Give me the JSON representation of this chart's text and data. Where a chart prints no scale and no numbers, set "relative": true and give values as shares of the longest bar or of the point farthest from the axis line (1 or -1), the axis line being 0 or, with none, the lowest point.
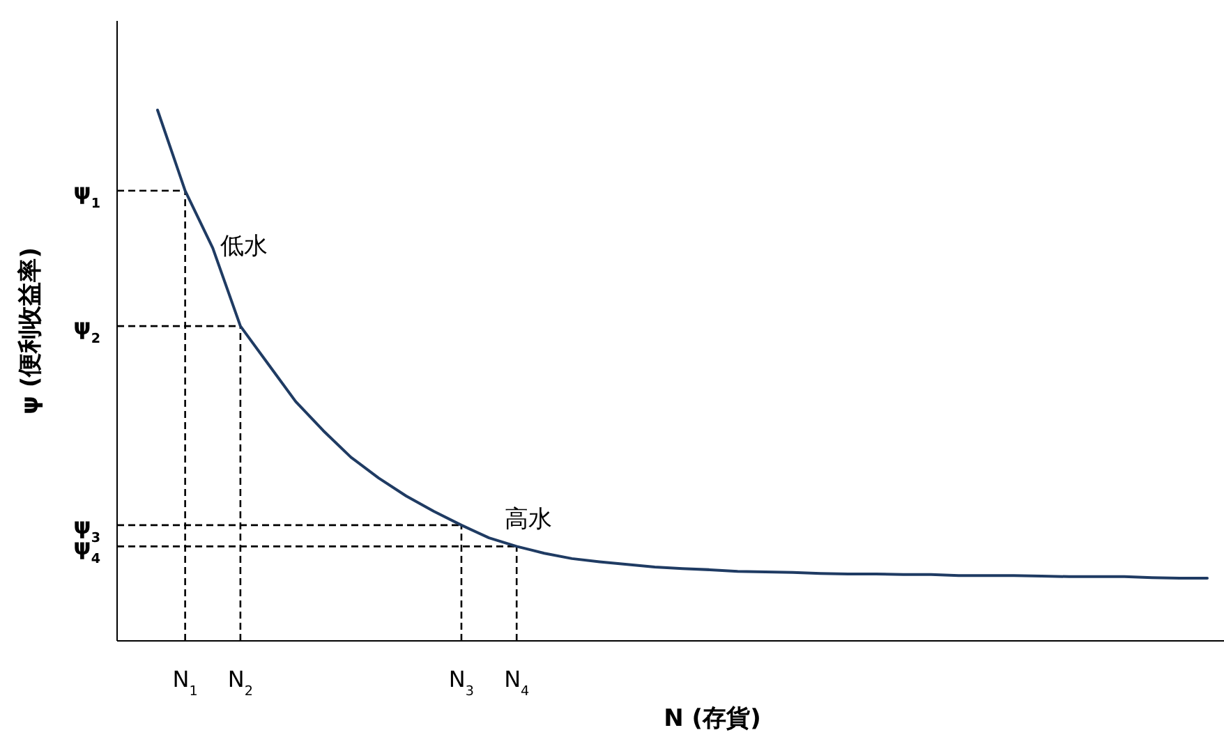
{
  "chart_data": {
    "type": "line",
    "xlabel": "N (存貨)",
    "ylabel": "ψ (便利收益率)",
    "relative": true,
    "marker": "none",
    "categories": [
      null,
      "N$_{1}$",
      null,
      "N$_{2}$",
      null,
      null,
      null,
      null,
      null,
      null,
      null,
      "N$_{3}$",
      null,
      "N$_{4}$",
      null,
      null,
      null,
      null,
      null,
      null,
      null,
      null,
      null,
      null,
      null,
      null,
      null,
      null,
      null,
      null,
      null,
      null,
      null,
      null,
      null,
      null,
      null,
      null,
      null
    ],
    "series": [
      {
        "color": "#1f3b63",
        "values": [
          1,
          0.848,
          0.74,
          0.593,
          0.522,
          0.451,
          0.396,
          0.346,
          0.307,
          0.273,
          0.244,
          0.218,
          0.194,
          0.178,
          0.165,
          0.155,
          0.149,
          0.144,
          0.139,
          0.136,
          0.134,
          0.131,
          0.13,
          0.129,
          0.127,
          0.126,
          0.126,
          0.125,
          0.125,
          0.123,
          0.123,
          0.123,
          0.122,
          0.121,
          0.121,
          0.121,
          0.119,
          0.118,
          0.118
        ]
      }
    ],
    "ref_lines": [
      {
        "axis": "x",
        "value": "N$_{1}$",
        "color": "#000000",
        "line_style": "dashed"
      },
      {
        "axis": "x",
        "value": "N$_{2}$",
        "color": "#000000",
        "line_style": "dashed"
      },
      {
        "axis": "x",
        "value": "N$_{3}$",
        "color": "#000000",
        "line_style": "dashed"
      },
      {
        "axis": "x",
        "value": "N$_{4}$",
        "color": "#000000",
        "line_style": "dashed"
      },
      {
        "axis": "y",
        "value": 0.848,
        "label": "ψ$_{1}$",
        "color": "#000000",
        "line_style": "dashed"
      },
      {
        "axis": "y",
        "value": 0.593,
        "label": "ψ$_{2}$",
        "color": "#000000",
        "line_style": "dashed"
      },
      {
        "axis": "y",
        "value": 0.218,
        "label": "ψ$_{3}$",
        "color": "#000000",
        "line_style": "dashed"
      },
      {
        "axis": "y",
        "value": 0.178,
        "label": "ψ$_{4}$",
        "color": "#000000",
        "line_style": "dashed"
      }
    ],
    "annotations": [
      "低水",
      "高水"
    ]
  }
}
